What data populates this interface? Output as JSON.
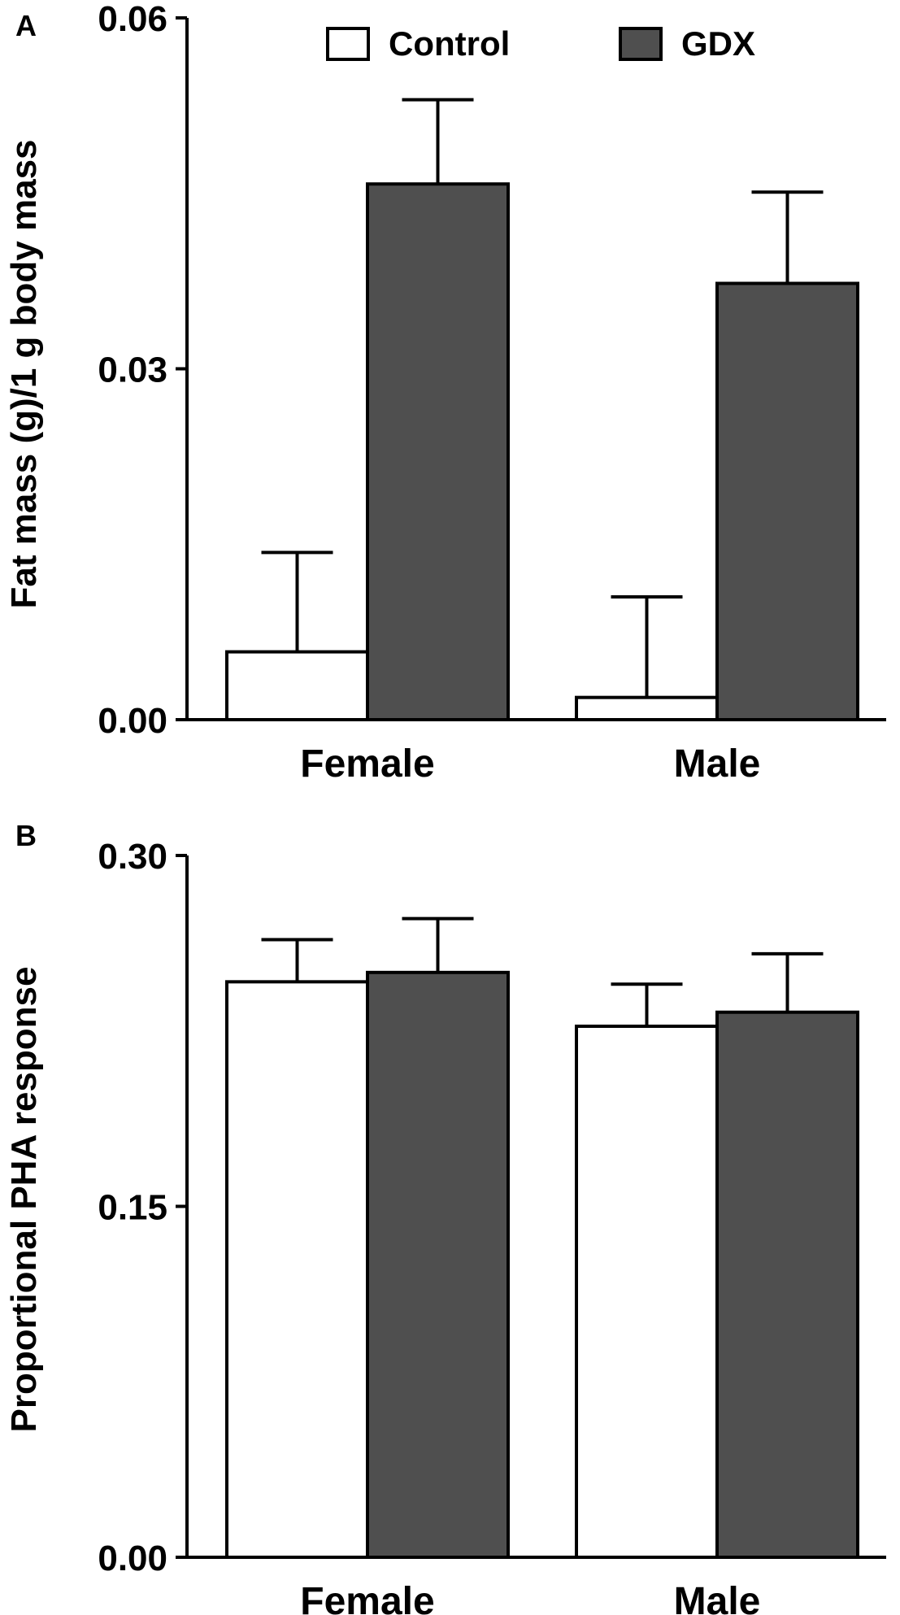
{
  "chart_data": [
    {
      "type": "bar",
      "panel_label": "A",
      "categories": [
        "Female",
        "Male"
      ],
      "ylabel": "Fat mass (g)/1 g body mass",
      "ylim": [
        0,
        0.06
      ],
      "yticks": [
        "0.00",
        "0.03",
        "0.06"
      ],
      "grid": false,
      "legend_position": "top",
      "series": [
        {
          "name": "Control",
          "values": [
            0.0058,
            0.0019
          ],
          "errors": [
            0.0085,
            0.0086
          ],
          "color": "#ffffff"
        },
        {
          "name": "GDX",
          "values": [
            0.0458,
            0.0373
          ],
          "errors": [
            0.0072,
            0.0078
          ],
          "color": "#4f4f4f"
        }
      ]
    },
    {
      "type": "bar",
      "panel_label": "B",
      "categories": [
        "Female",
        "Male"
      ],
      "ylabel": "Proportional PHA response",
      "ylim": [
        0,
        0.3
      ],
      "yticks": [
        "0.00",
        "0.15",
        "0.30"
      ],
      "grid": false,
      "series": [
        {
          "name": "Control",
          "values": [
            0.246,
            0.227
          ],
          "errors": [
            0.018,
            0.018
          ],
          "color": "#ffffff"
        },
        {
          "name": "GDX",
          "values": [
            0.25,
            0.233
          ],
          "errors": [
            0.023,
            0.025
          ],
          "color": "#4f4f4f"
        }
      ]
    }
  ]
}
